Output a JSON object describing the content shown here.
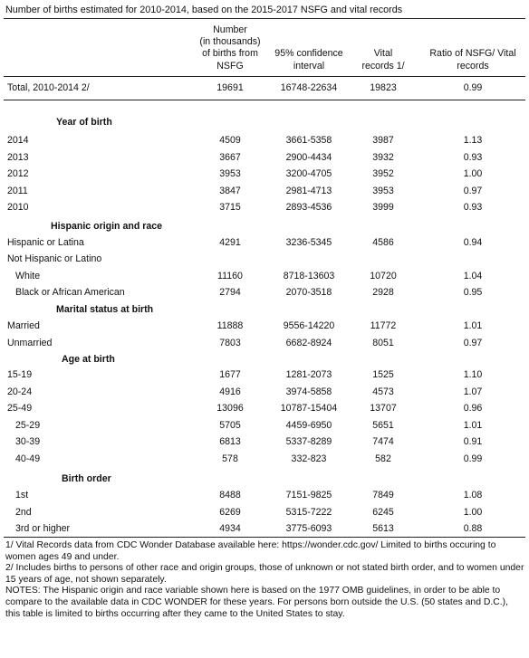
{
  "title": "Number of births estimated for 2010-2014, based on the 2015-2017 NSFG and vital records",
  "headers": {
    "num": [
      "Number",
      "(in thousands)",
      "of births from",
      "NSFG"
    ],
    "ci": [
      "95% confidence",
      "interval"
    ],
    "vital": [
      "Vital",
      "records 1/"
    ],
    "ratio": [
      "Ratio of NSFG/ Vital",
      "records"
    ]
  },
  "total": {
    "label": "Total, 2010-2014 2/",
    "num": "19691",
    "ci": "16748-22634",
    "vital": "19823",
    "ratio": "0.99"
  },
  "sections": {
    "year": "Year of birth",
    "hisp": "Hispanic origin and race",
    "marital": "Marital status at birth",
    "age": "Age at birth",
    "order": "Birth order"
  },
  "year_rows": [
    {
      "label": "2014",
      "num": "4509",
      "ci": "3661-5358",
      "vital": "3987",
      "ratio": "1.13"
    },
    {
      "label": "2013",
      "num": "3667",
      "ci": "2900-4434",
      "vital": "3932",
      "ratio": "0.93"
    },
    {
      "label": "2012",
      "num": "3953",
      "ci": "3200-4705",
      "vital": "3952",
      "ratio": "1.00"
    },
    {
      "label": "2011",
      "num": "3847",
      "ci": "2981-4713",
      "vital": "3953",
      "ratio": "0.97"
    },
    {
      "label": "2010",
      "num": "3715",
      "ci": "2893-4536",
      "vital": "3999",
      "ratio": "0.93"
    }
  ],
  "hisp_rows": [
    {
      "label": "Hispanic or Latina",
      "num": "4291",
      "ci": "3236-5345",
      "vital": "4586",
      "ratio": "0.94"
    },
    {
      "label": "Not Hispanic or Latino",
      "num": "",
      "ci": "",
      "vital": "",
      "ratio": ""
    },
    {
      "label": "White",
      "num": "11160",
      "ci": "8718-13603",
      "vital": "10720",
      "ratio": "1.04"
    },
    {
      "label": "Black or African American",
      "num": "2794",
      "ci": "2070-3518",
      "vital": "2928",
      "ratio": "0.95"
    }
  ],
  "marital_rows": [
    {
      "label": "Married",
      "num": "11888",
      "ci": "9556-14220",
      "vital": "11772",
      "ratio": "1.01"
    },
    {
      "label": "Unmarried",
      "num": "7803",
      "ci": "6682-8924",
      "vital": "8051",
      "ratio": "0.97"
    }
  ],
  "age_rows": [
    {
      "label": "15-19",
      "num": "1677",
      "ci": "1281-2073",
      "vital": "1525",
      "ratio": "1.10"
    },
    {
      "label": "20-24",
      "num": "4916",
      "ci": "3974-5858",
      "vital": "4573",
      "ratio": "1.07"
    },
    {
      "label": "25-49",
      "num": "13096",
      "ci": "10787-15404",
      "vital": "13707",
      "ratio": "0.96"
    },
    {
      "label": "25-29",
      "num": "5705",
      "ci": "4459-6950",
      "vital": "5651",
      "ratio": "1.01"
    },
    {
      "label": "30-39",
      "num": "6813",
      "ci": "5337-8289",
      "vital": "7474",
      "ratio": "0.91"
    },
    {
      "label": "40-49",
      "num": "578",
      "ci": "332-823",
      "vital": "582",
      "ratio": "0.99"
    }
  ],
  "order_rows": [
    {
      "label": "1st",
      "num": "8488",
      "ci": "7151-9825",
      "vital": "7849",
      "ratio": "1.08"
    },
    {
      "label": "2nd",
      "num": "6269",
      "ci": "5315-7222",
      "vital": "6245",
      "ratio": "1.00"
    },
    {
      "label": "3rd or higher",
      "num": "4934",
      "ci": "3775-6093",
      "vital": "5613",
      "ratio": "0.88"
    }
  ],
  "notes": [
    "1/ Vital Records data from CDC Wonder Database available here:  https://wonder.cdc.gov/  Limited to births occuring to women ages 49 and under.",
    "2/ Includes births to persons of other race and origin groups, those of unknown or not stated birth order, and to women under 15 years of age, not shown separately.",
    "NOTES:  The Hispanic origin and race variable shown here is based on the 1977 OMB guidelines, in order to be able to compare to the available data in CDC WONDER for these years. For persons born outside the U.S. (50 states and D.C.), this table is limited to births occurring after they came to the United States to stay."
  ]
}
